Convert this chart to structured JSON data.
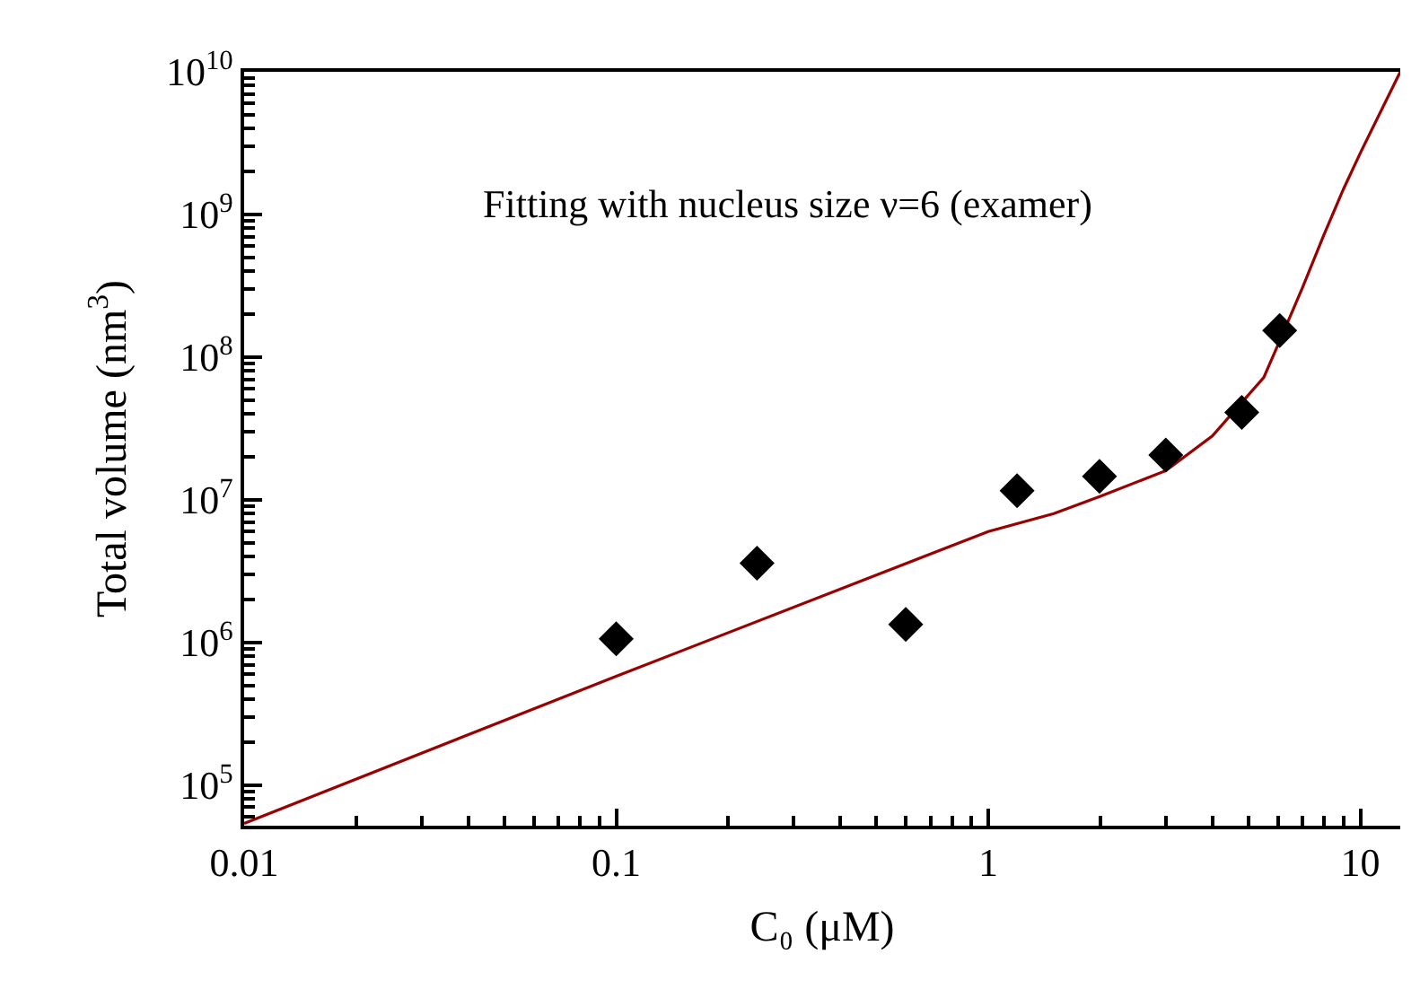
{
  "chart_data": {
    "type": "scatter",
    "xlabel": "C₀ (μM)",
    "ylabel": "Total volume (nm$^{3}$)",
    "log": "xy",
    "annotations": [
      "Fitting with nucleus size ν=6 (examer)"
    ],
    "xlim": [
      0.01,
      12.8
    ],
    "ylim": [
      52000,
      10000000000
    ],
    "xticks": [
      0.01,
      0.1,
      1,
      10
    ],
    "yticks": [
      {
        "value": 100000,
        "label": "10$^{5}$"
      },
      {
        "value": 1000000,
        "label": "10$^{6}$"
      },
      {
        "value": 10000000,
        "label": "10$^{7}$"
      },
      {
        "value": 100000000,
        "label": "10$^{8}$"
      },
      {
        "value": 1000000000,
        "label": "10$^{9}$"
      },
      {
        "value": 10000000000,
        "label": "10$^{10}$"
      }
    ],
    "series": [
      {
        "type": "line",
        "color": "#990000",
        "marker": "none",
        "line_style": "solid",
        "x": [
          0.01,
          0.1,
          1,
          1.5,
          2,
          3,
          4,
          5.5,
          6.07,
          7,
          8,
          9,
          10,
          12.8
        ],
        "values": [
          54000,
          580000,
          6000000,
          8000000,
          10600000,
          16000000,
          28000000,
          72000000,
          130000000,
          310000000,
          730000000,
          1500000000,
          2700000000,
          10000000000
        ]
      },
      {
        "color": "#000000",
        "marker": "diamond",
        "x": [
          0.1,
          0.239,
          0.6,
          1.195,
          1.99,
          3.0,
          4.8,
          6.07
        ],
        "values": [
          1060000,
          3600000,
          1340000,
          11600000,
          14600000,
          20600000,
          41000000,
          154000000
        ]
      }
    ]
  }
}
